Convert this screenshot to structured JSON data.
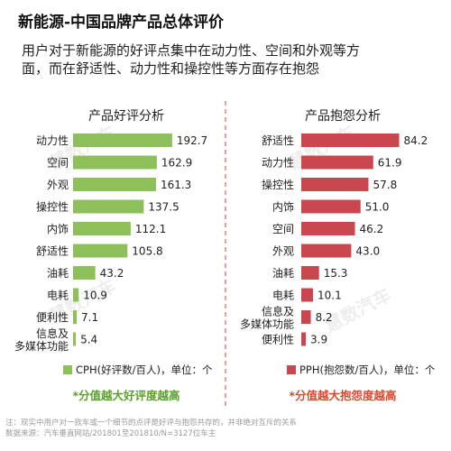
{
  "title": "新能源-中国品牌产品总体评价",
  "subtitle_lines": [
    "用户对于新能源的好评点集中在动力性、空间和外观等方",
    "面，而在舒适性、动力性和操控性等方面存在抱怨"
  ],
  "watermark": "慧数汽车",
  "colors": {
    "positive": "#8dc05a",
    "negative": "#c9474f",
    "positive_note": "#5aa02c",
    "negative_note": "#d94a2c",
    "divider": "#e07a7a"
  },
  "footnote_lines": [
    "注：现实中用户对一款车或一个细节的点评是好评与抱怨共存的，并非绝对互斥的关系",
    "数据来源：汽车垂直网站/201801至201810/N=3127位车主"
  ],
  "chart_data": [
    {
      "type": "bar",
      "orientation": "horizontal",
      "title": "产品好评分析",
      "categories": [
        "动力性",
        "空间",
        "外观",
        "操控性",
        "内饰",
        "舒适性",
        "油耗",
        "电耗",
        "便利性",
        "信息及\n多媒体功能"
      ],
      "series": [
        {
          "name": "CPH(好评数/百人)，单位：个",
          "values": [
            192.7,
            162.9,
            161.3,
            137.5,
            112.1,
            105.8,
            43.2,
            10.9,
            7.1,
            5.4
          ]
        }
      ],
      "legend_position": "bottom",
      "note": "*分值越大好评度越高",
      "xlim": [
        0,
        200
      ]
    },
    {
      "type": "bar",
      "orientation": "horizontal",
      "title": "产品抱怨分析",
      "categories": [
        "舒适性",
        "动力性",
        "操控性",
        "内饰",
        "空间",
        "外观",
        "油耗",
        "电耗",
        "信息及\n多媒体功能",
        "便利性"
      ],
      "series": [
        {
          "name": "PPH(抱怨数/百人)，单位：个",
          "values": [
            84.2,
            61.9,
            57.8,
            51.0,
            46.2,
            43.0,
            15.3,
            10.1,
            8.2,
            3.9
          ]
        }
      ],
      "legend_position": "bottom",
      "note": "*分值越大抱怨度越高",
      "xlim": [
        0,
        90
      ]
    }
  ]
}
